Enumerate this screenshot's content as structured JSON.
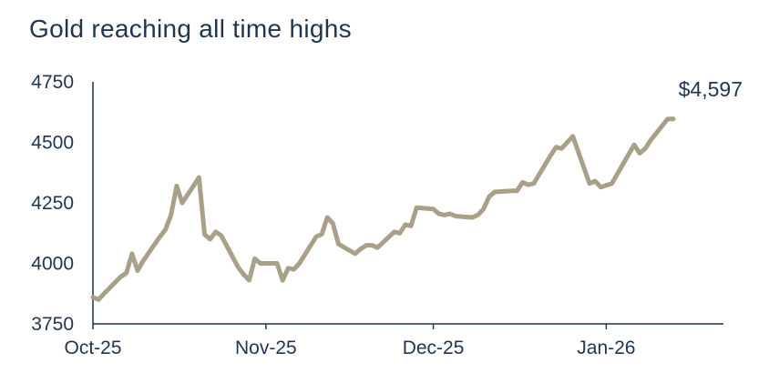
{
  "chart_data": {
    "type": "line",
    "title": "Gold reaching all time highs",
    "xlabel": "",
    "ylabel": "",
    "ylim": [
      3750,
      4750
    ],
    "yticks": [
      "4750",
      "4500",
      "4250",
      "4000",
      "3750"
    ],
    "xticks": [
      {
        "label": "Oct-25",
        "date": "2025-10-01"
      },
      {
        "label": "Nov-25",
        "date": "2025-11-01"
      },
      {
        "label": "Dec-25",
        "date": "2025-12-01"
      },
      {
        "label": "Jan-26",
        "date": "2026-01-01"
      }
    ],
    "xlim": [
      "2025-10-01",
      "2026-01-22"
    ],
    "grid": false,
    "end_label": "$4,597",
    "line_color": "#aa9f89",
    "series": [
      {
        "name": "",
        "points": [
          [
            "2025-10-01",
            3860
          ],
          [
            "2025-10-02",
            3850
          ],
          [
            "2025-10-03",
            3875
          ],
          [
            "2025-10-06",
            3945
          ],
          [
            "2025-10-07",
            3960
          ],
          [
            "2025-10-08",
            4040
          ],
          [
            "2025-10-09",
            3970
          ],
          [
            "2025-10-10",
            4010
          ],
          [
            "2025-10-13",
            4110
          ],
          [
            "2025-10-14",
            4140
          ],
          [
            "2025-10-15",
            4200
          ],
          [
            "2025-10-16",
            4320
          ],
          [
            "2025-10-17",
            4250
          ],
          [
            "2025-10-20",
            4355
          ],
          [
            "2025-10-21",
            4120
          ],
          [
            "2025-10-22",
            4100
          ],
          [
            "2025-10-23",
            4130
          ],
          [
            "2025-10-24",
            4115
          ],
          [
            "2025-10-27",
            3985
          ],
          [
            "2025-10-28",
            3955
          ],
          [
            "2025-10-29",
            3930
          ],
          [
            "2025-10-30",
            4020
          ],
          [
            "2025-10-31",
            4000
          ],
          [
            "2025-11-03",
            4000
          ],
          [
            "2025-11-04",
            3930
          ],
          [
            "2025-11-05",
            3980
          ],
          [
            "2025-11-06",
            3975
          ],
          [
            "2025-11-07",
            4000
          ],
          [
            "2025-11-10",
            4110
          ],
          [
            "2025-11-11",
            4120
          ],
          [
            "2025-11-12",
            4190
          ],
          [
            "2025-11-13",
            4165
          ],
          [
            "2025-11-14",
            4080
          ],
          [
            "2025-11-17",
            4040
          ],
          [
            "2025-11-18",
            4060
          ],
          [
            "2025-11-19",
            4075
          ],
          [
            "2025-11-20",
            4075
          ],
          [
            "2025-11-21",
            4065
          ],
          [
            "2025-11-24",
            4130
          ],
          [
            "2025-11-25",
            4125
          ],
          [
            "2025-11-26",
            4160
          ],
          [
            "2025-11-27",
            4155
          ],
          [
            "2025-11-28",
            4230
          ],
          [
            "2025-12-01",
            4225
          ],
          [
            "2025-12-02",
            4205
          ],
          [
            "2025-12-03",
            4200
          ],
          [
            "2025-12-04",
            4205
          ],
          [
            "2025-12-05",
            4195
          ],
          [
            "2025-12-08",
            4190
          ],
          [
            "2025-12-09",
            4200
          ],
          [
            "2025-12-10",
            4225
          ],
          [
            "2025-12-11",
            4275
          ],
          [
            "2025-12-12",
            4295
          ],
          [
            "2025-12-15",
            4300
          ],
          [
            "2025-12-16",
            4300
          ],
          [
            "2025-12-17",
            4335
          ],
          [
            "2025-12-18",
            4325
          ],
          [
            "2025-12-19",
            4330
          ],
          [
            "2025-12-22",
            4445
          ],
          [
            "2025-12-23",
            4480
          ],
          [
            "2025-12-24",
            4475
          ],
          [
            "2025-12-26",
            4525
          ],
          [
            "2025-12-29",
            4330
          ],
          [
            "2025-12-30",
            4340
          ],
          [
            "2025-12-31",
            4315
          ],
          [
            "2026-01-02",
            4330
          ],
          [
            "2026-01-05",
            4450
          ],
          [
            "2026-01-06",
            4490
          ],
          [
            "2026-01-07",
            4455
          ],
          [
            "2026-01-08",
            4475
          ],
          [
            "2026-01-09",
            4510
          ],
          [
            "2026-01-12",
            4597
          ],
          [
            "2026-01-13",
            4597
          ]
        ]
      }
    ]
  }
}
